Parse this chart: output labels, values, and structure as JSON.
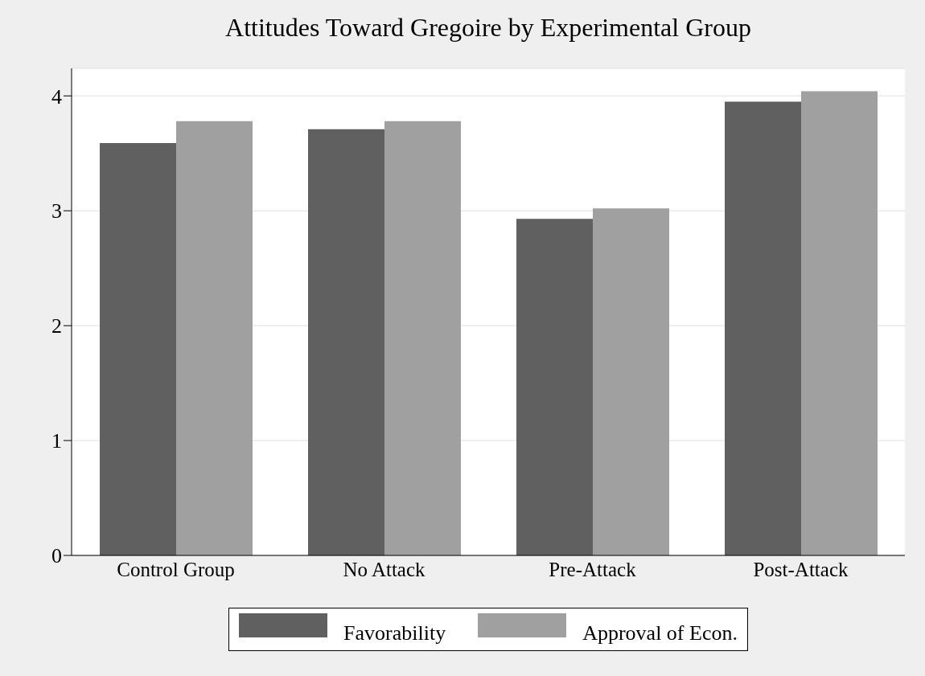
{
  "chart_data": {
    "type": "bar",
    "title": "Attitudes Toward Gregoire by Experimental Group",
    "categories": [
      "Control Group",
      "No Attack",
      "Pre-Attack",
      "Post-Attack"
    ],
    "series": [
      {
        "name": "Favorability",
        "color": "#606060",
        "values": [
          3.59,
          3.71,
          2.93,
          3.95
        ]
      },
      {
        "name": "Approval of Econ.",
        "color": "#a0a0a0",
        "values": [
          3.78,
          3.78,
          3.02,
          4.04
        ]
      }
    ],
    "ylim": [
      0,
      4.24
    ],
    "yticks": [
      0,
      1,
      2,
      3,
      4
    ],
    "grid": "y",
    "legend": "bottom"
  }
}
